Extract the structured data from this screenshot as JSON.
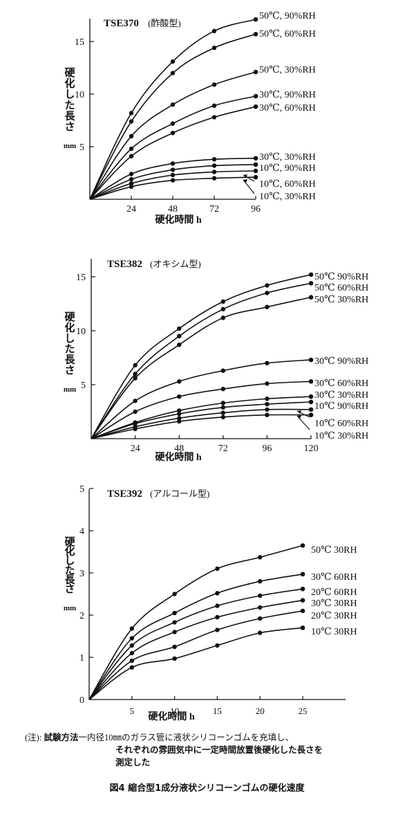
{
  "chart_data": [
    {
      "type": "line",
      "title": "TSE370",
      "subtitle": "(酢酸型)",
      "xlabel": "硬化時間 h",
      "ylabel": "硬化した長さ",
      "yunit": "mm",
      "xticks": [
        "24",
        "48",
        "72",
        "96"
      ],
      "yticks": [
        "5",
        "10",
        "15"
      ],
      "xlim": [
        0,
        96
      ],
      "ylim": [
        0,
        17
      ],
      "x": [
        0,
        24,
        48,
        72,
        96
      ],
      "series": [
        {
          "name": "50℃, 90%RH",
          "values": [
            0,
            8.2,
            13.1,
            16.0,
            17.1
          ]
        },
        {
          "name": "50℃, 60%RH",
          "values": [
            0,
            7.4,
            12.0,
            14.4,
            15.7
          ]
        },
        {
          "name": "50℃, 30%RH",
          "values": [
            0,
            6.0,
            9.0,
            10.9,
            12.1
          ]
        },
        {
          "name": "30℃, 90%RH",
          "values": [
            0,
            4.8,
            7.2,
            8.9,
            9.8
          ]
        },
        {
          "name": "30℃, 60%RH",
          "values": [
            0,
            4.1,
            6.3,
            7.8,
            8.8
          ]
        },
        {
          "name": "30℃, 30%RH",
          "values": [
            0,
            2.4,
            3.4,
            3.8,
            3.9
          ]
        },
        {
          "name": "10℃, 90%RH",
          "values": [
            0,
            1.9,
            2.8,
            3.2,
            3.3
          ]
        },
        {
          "name": "10℃, 60%RH",
          "values": [
            0,
            1.5,
            2.3,
            2.6,
            2.7
          ]
        },
        {
          "name": "10℃, 30%RH",
          "values": [
            0,
            1.2,
            1.8,
            2.0,
            2.1
          ]
        }
      ]
    },
    {
      "type": "line",
      "title": "TSE382",
      "subtitle": "(オキシム型)",
      "xlabel": "硬化時間 h",
      "ylabel": "硬化した長さ",
      "yunit": "mm",
      "xticks": [
        "24",
        "48",
        "72",
        "96",
        "120"
      ],
      "yticks": [
        "5",
        "10",
        "15"
      ],
      "xlim": [
        0,
        120
      ],
      "ylim": [
        0,
        15.5
      ],
      "x": [
        0,
        24,
        48,
        72,
        96,
        120
      ],
      "series": [
        {
          "name": "50℃ 90%RH",
          "values": [
            0,
            6.8,
            10.2,
            12.7,
            14.2,
            15.2
          ]
        },
        {
          "name": "50℃ 60%RH",
          "values": [
            0,
            6.0,
            9.5,
            12.0,
            13.5,
            14.4
          ]
        },
        {
          "name": "50℃ 30%RH",
          "values": [
            0,
            5.6,
            8.7,
            11.2,
            12.2,
            13.1
          ]
        },
        {
          "name": "30℃ 90%RH",
          "values": [
            0,
            3.5,
            5.3,
            6.3,
            7.0,
            7.3
          ]
        },
        {
          "name": "30℃ 60%RH",
          "values": [
            0,
            2.5,
            3.9,
            4.6,
            5.1,
            5.3
          ]
        },
        {
          "name": "30℃ 30%RH",
          "values": [
            0,
            1.5,
            2.6,
            3.3,
            3.7,
            3.9
          ]
        },
        {
          "name": "10℃ 90%RH",
          "values": [
            0,
            1.4,
            2.3,
            2.9,
            3.2,
            3.4
          ]
        },
        {
          "name": "10℃ 60%RH",
          "values": [
            0,
            1.1,
            1.9,
            2.4,
            2.7,
            2.7
          ]
        },
        {
          "name": "10℃ 30%RH",
          "values": [
            0,
            0.9,
            1.6,
            2.0,
            2.2,
            2.2
          ]
        }
      ]
    },
    {
      "type": "line",
      "title": "TSE392",
      "subtitle": "(アルコール型)",
      "xlabel": "硬化時間 h",
      "ylabel": "硬化した長さ",
      "yunit": "mm",
      "xticks": [
        "5",
        "10",
        "15",
        "20",
        "25"
      ],
      "yticks": [
        "0",
        "1",
        "2",
        "3",
        "4",
        "5"
      ],
      "xlim": [
        0,
        30
      ],
      "ylim": [
        0,
        5
      ],
      "x": [
        0,
        5,
        10,
        15,
        20,
        25
      ],
      "series": [
        {
          "name": "50℃ 30RH",
          "values": [
            0,
            1.68,
            2.5,
            3.1,
            3.37,
            3.65
          ]
        },
        {
          "name": "30℃ 60RH",
          "values": [
            0,
            1.45,
            2.05,
            2.52,
            2.8,
            2.97
          ]
        },
        {
          "name": "20℃ 60RH",
          "values": [
            0,
            1.28,
            1.83,
            2.22,
            2.46,
            2.62
          ]
        },
        {
          "name": "30℃ 30RH",
          "values": [
            0,
            1.1,
            1.6,
            1.95,
            2.18,
            2.35
          ]
        },
        {
          "name": "20℃ 30RH",
          "values": [
            0,
            0.92,
            1.25,
            1.65,
            1.92,
            2.1
          ]
        },
        {
          "name": "10℃ 30RH",
          "values": [
            0,
            0.76,
            0.97,
            1.28,
            1.58,
            1.7
          ]
        }
      ]
    }
  ],
  "note": {
    "prefix": "(注):",
    "method_label": "試験方法",
    "line1": "一内径10㎜のガラス管に液状シリコーンゴムを充填し、",
    "line2": "それぞれの雰囲気中に一定時間放置後硬化した長さを",
    "line3": "測定した"
  },
  "caption": "図4 縮合型1成分液状シリコーンゴムの硬化速度"
}
